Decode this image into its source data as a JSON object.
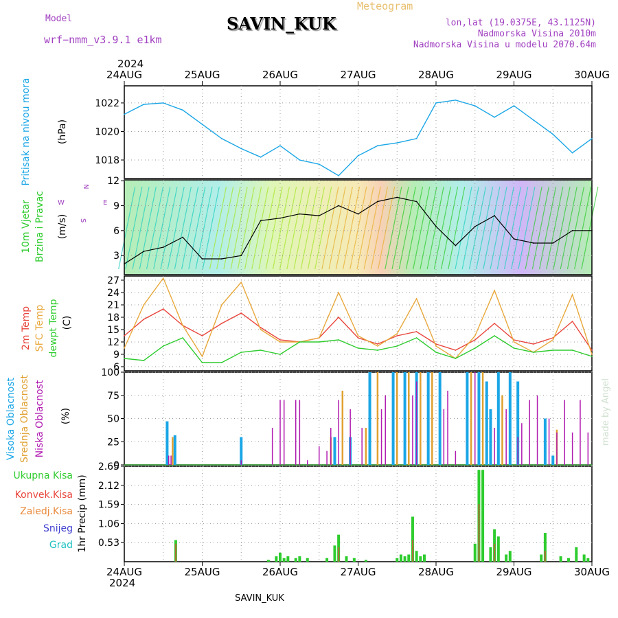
{
  "header": {
    "model_label": "Model",
    "model_name": "wrf−nmm_v3.9.1  e1km",
    "meteogram_label": "Meteogram",
    "station": "SAVIN_KUK",
    "lonlat": "lon,lat (19.0375E, 43.1125N)",
    "altitude": "Nadmorska Visina 2010m",
    "model_altitude": "Nadmorska Visina u modelu 2070.64m",
    "year_top": "2024",
    "year_bottom": "2024",
    "footer_station": "SAVIN_KUK",
    "credit": "made by Angel"
  },
  "colors": {
    "pressure": "#1aa6e6",
    "temp2m": "#e8453c",
    "sfc": "#e8a83c",
    "dewpt": "#2ecc2e",
    "high_cloud": "#1aa6e6",
    "mid_cloud": "#e0a030",
    "low_cloud": "#b01ab0",
    "total_precip": "#2ecc2e",
    "conv_precip": "#e8453c",
    "model_text": "#a040c0"
  },
  "chart_data": [
    {
      "type": "line",
      "panel": "pressure",
      "ylabel_name": "Pritisak na nivou mora",
      "ylabel_unit": "(hPa)",
      "xticks": [
        "24AUG",
        "25AUG",
        "26AUG",
        "27AUG",
        "28AUG",
        "29AUG",
        "30AUG"
      ],
      "x_days": [
        0,
        0.25,
        0.5,
        0.75,
        1,
        1.25,
        1.5,
        1.75,
        2,
        2.25,
        2.5,
        2.75,
        3,
        3.25,
        3.5,
        3.75,
        4,
        4.25,
        4.5,
        4.75,
        5,
        5.25,
        5.5,
        5.75,
        6
      ],
      "ylim": [
        1016.7,
        1023.2
      ],
      "yticks": [
        1018,
        1020,
        1022
      ],
      "series": [
        {
          "name": "",
          "values": [
            1021.2,
            1021.9,
            1022.0,
            1021.5,
            1020.5,
            1019.5,
            1018.8,
            1018.2,
            1019.0,
            1018.0,
            1017.7,
            1016.9,
            1018.3,
            1019.0,
            1019.2,
            1019.5,
            1022.0,
            1022.2,
            1021.8,
            1021.0,
            1021.8,
            1020.8,
            1019.8,
            1018.5,
            1019.5
          ]
        }
      ]
    },
    {
      "type": "line",
      "panel": "wind",
      "ylabel_name": "10m Vjetar",
      "ylabel_sub": "Brzina i Pravac",
      "ylabel_unit": "(m/s)",
      "compass": {
        "n": "N",
        "w": "W",
        "e": "E",
        "s": "S"
      },
      "x_days": [
        0,
        0.25,
        0.5,
        0.75,
        1,
        1.25,
        1.5,
        1.75,
        2,
        2.25,
        2.5,
        2.75,
        3,
        3.25,
        3.5,
        3.75,
        4,
        4.25,
        4.5,
        4.75,
        5,
        5.25,
        5.5,
        5.75,
        6
      ],
      "ylim": [
        0.7,
        12.1
      ],
      "yticks": [
        3,
        6,
        9,
        12
      ],
      "series": [
        {
          "name": "",
          "values": [
            2.0,
            3.5,
            4.0,
            5.2,
            2.6,
            2.6,
            3.0,
            7.2,
            7.5,
            8.0,
            7.8,
            9.0,
            8.0,
            9.5,
            10.0,
            9.5,
            6.5,
            4.2,
            6.5,
            7.8,
            5.0,
            4.5,
            4.5,
            6.0,
            6.0
          ]
        }
      ]
    },
    {
      "type": "line",
      "panel": "temperature",
      "ylabel_names": [
        "2m Temp",
        "SFC Temp",
        "dewpt Temp"
      ],
      "ylabel_unit": "(C)",
      "x_days": [
        0,
        0.25,
        0.5,
        0.75,
        1,
        1.25,
        1.5,
        1.75,
        2,
        2.25,
        2.5,
        2.75,
        3,
        3.25,
        3.5,
        3.75,
        4,
        4.25,
        4.5,
        4.75,
        5,
        5.25,
        5.5,
        5.75,
        6
      ],
      "ylim": [
        5,
        28
      ],
      "yticks": [
        6,
        9,
        12,
        15,
        18,
        21,
        24,
        27
      ],
      "series": [
        {
          "name": "2m",
          "values": [
            13.5,
            17.5,
            20.0,
            16.0,
            13.5,
            16.5,
            19.0,
            15.5,
            12.5,
            12.0,
            13.0,
            18.0,
            13.0,
            11.5,
            13.5,
            14.5,
            11.5,
            10.0,
            12.5,
            16.5,
            12.5,
            11.5,
            13.0,
            17.0,
            10.0
          ]
        },
        {
          "name": "sfc",
          "values": [
            10.5,
            21.0,
            27.5,
            16.0,
            8.5,
            21.0,
            26.5,
            15.0,
            12.0,
            12.0,
            13.0,
            24.0,
            13.5,
            11.0,
            14.0,
            22.5,
            11.0,
            8.0,
            13.5,
            24.5,
            12.0,
            9.5,
            12.5,
            23.5,
            9.0
          ]
        },
        {
          "name": "dewpt",
          "values": [
            8.0,
            7.5,
            11.0,
            13.0,
            7.0,
            7.0,
            9.5,
            10.0,
            9.0,
            12.0,
            12.0,
            12.5,
            10.5,
            10.0,
            11.0,
            13.0,
            9.5,
            8.0,
            10.5,
            13.5,
            10.5,
            9.5,
            10.0,
            10.0,
            8.5
          ]
        }
      ]
    },
    {
      "type": "bar",
      "panel": "cloud",
      "ylabel_names": [
        "Visoka Oblacnost",
        "Srednja Oblacnost",
        "Niska Oblacnost"
      ],
      "ylabel_unit": "(%)",
      "ylim": [
        0,
        100
      ],
      "yticks": [
        0,
        25,
        50,
        75,
        100
      ],
      "series": [
        {
          "name": "high",
          "bars": [
            [
              0.55,
              47
            ],
            [
              0.65,
              32
            ],
            [
              1.5,
              30
            ],
            [
              2.7,
              30
            ],
            [
              2.9,
              30
            ],
            [
              3.15,
              100
            ],
            [
              3.45,
              100
            ],
            [
              3.6,
              100
            ],
            [
              3.75,
              100
            ],
            [
              3.9,
              100
            ],
            [
              4.05,
              100
            ],
            [
              4.4,
              100
            ],
            [
              4.55,
              100
            ],
            [
              4.65,
              90
            ],
            [
              4.7,
              60
            ],
            [
              4.8,
              100
            ],
            [
              4.95,
              100
            ],
            [
              5.05,
              90
            ],
            [
              5.4,
              50
            ],
            [
              5.5,
              10
            ]
          ]
        },
        {
          "name": "mid",
          "bars": [
            [
              0.62,
              30
            ],
            [
              2.65,
              30
            ],
            [
              2.8,
              80
            ],
            [
              3.1,
              40
            ],
            [
              3.25,
              100
            ],
            [
              3.5,
              100
            ],
            [
              3.65,
              100
            ],
            [
              3.8,
              100
            ],
            [
              3.95,
              100
            ],
            [
              4.45,
              100
            ],
            [
              4.6,
              100
            ],
            [
              4.85,
              75
            ],
            [
              5.55,
              38
            ]
          ]
        },
        {
          "name": "low",
          "bars": [
            [
              0.57,
              10
            ],
            [
              0.6,
              10
            ],
            [
              1.5,
              5
            ],
            [
              1.9,
              40
            ],
            [
              2.0,
              70
            ],
            [
              2.05,
              70
            ],
            [
              2.2,
              70
            ],
            [
              2.25,
              70
            ],
            [
              2.35,
              5
            ],
            [
              2.5,
              20
            ],
            [
              2.6,
              15
            ],
            [
              2.65,
              40
            ],
            [
              2.75,
              70
            ],
            [
              2.9,
              60
            ],
            [
              3.05,
              40
            ],
            [
              3.3,
              60
            ],
            [
              3.35,
              75
            ],
            [
              3.7,
              75
            ],
            [
              3.75,
              90
            ],
            [
              4.1,
              60
            ],
            [
              4.15,
              80
            ],
            [
              4.25,
              15
            ],
            [
              4.5,
              100
            ],
            [
              4.75,
              40
            ],
            [
              4.9,
              60
            ],
            [
              5.05,
              30
            ],
            [
              5.1,
              45
            ],
            [
              5.2,
              70
            ],
            [
              5.3,
              75
            ],
            [
              5.45,
              50
            ],
            [
              5.55,
              35
            ],
            [
              5.65,
              70
            ],
            [
              5.75,
              35
            ],
            [
              5.85,
              70
            ],
            [
              5.95,
              35
            ]
          ]
        }
      ]
    },
    {
      "type": "bar",
      "panel": "precip",
      "ylabel": "1hr Precip (mm)",
      "legend": [
        "Ukupna Kisa",
        "Konvek.Kisa",
        "Zaledj.Kisa",
        "Snijeg",
        "Grad"
      ],
      "legend_colors": [
        "#2ecc2e",
        "#e8453c",
        "#e88a3c",
        "#4040d0",
        "#20c0c0"
      ],
      "ylim": [
        0,
        2.65
      ],
      "yticks": [
        0.53,
        1.06,
        1.59,
        2.12,
        2.65
      ],
      "ytick_labels": [
        "0.53",
        "1.06",
        "1.59",
        "2.12",
        "2.65"
      ],
      "xticks": [
        "24AUG",
        "25AUG",
        "26AUG",
        "27AUG",
        "28AUG",
        "29AUG",
        "30AUG"
      ],
      "series": [
        {
          "name": "total",
          "bars": [
            [
              0.66,
              0.6
            ],
            [
              1.85,
              0.05
            ],
            [
              1.95,
              0.15
            ],
            [
              2.0,
              0.25
            ],
            [
              2.05,
              0.1
            ],
            [
              2.1,
              0.15
            ],
            [
              2.2,
              0.1
            ],
            [
              2.25,
              0.15
            ],
            [
              2.35,
              0.1
            ],
            [
              2.6,
              0.1
            ],
            [
              2.7,
              0.45
            ],
            [
              2.75,
              0.75
            ],
            [
              2.85,
              0.15
            ],
            [
              2.95,
              0.1
            ],
            [
              3.1,
              0.05
            ],
            [
              3.5,
              0.1
            ],
            [
              3.55,
              0.2
            ],
            [
              3.6,
              0.15
            ],
            [
              3.65,
              0.2
            ],
            [
              3.7,
              1.25
            ],
            [
              3.75,
              0.3
            ],
            [
              3.8,
              0.15
            ],
            [
              3.85,
              0.2
            ],
            [
              4.5,
              0.5
            ],
            [
              4.55,
              2.55
            ],
            [
              4.6,
              2.55
            ],
            [
              4.7,
              0.4
            ],
            [
              4.75,
              0.9
            ],
            [
              4.8,
              0.7
            ],
            [
              4.9,
              0.2
            ],
            [
              4.95,
              0.3
            ],
            [
              5.35,
              0.2
            ],
            [
              5.4,
              0.8
            ],
            [
              5.6,
              0.15
            ],
            [
              5.7,
              0.1
            ],
            [
              5.8,
              0.4
            ],
            [
              5.9,
              0.2
            ],
            [
              5.95,
              0.1
            ]
          ]
        },
        {
          "name": "conv",
          "bars": [
            [
              0.66,
              0.5
            ],
            [
              2.75,
              0.4
            ],
            [
              3.7,
              0.6
            ],
            [
              4.55,
              1.6
            ],
            [
              4.75,
              0.5
            ],
            [
              5.4,
              0.3
            ]
          ]
        }
      ]
    }
  ]
}
